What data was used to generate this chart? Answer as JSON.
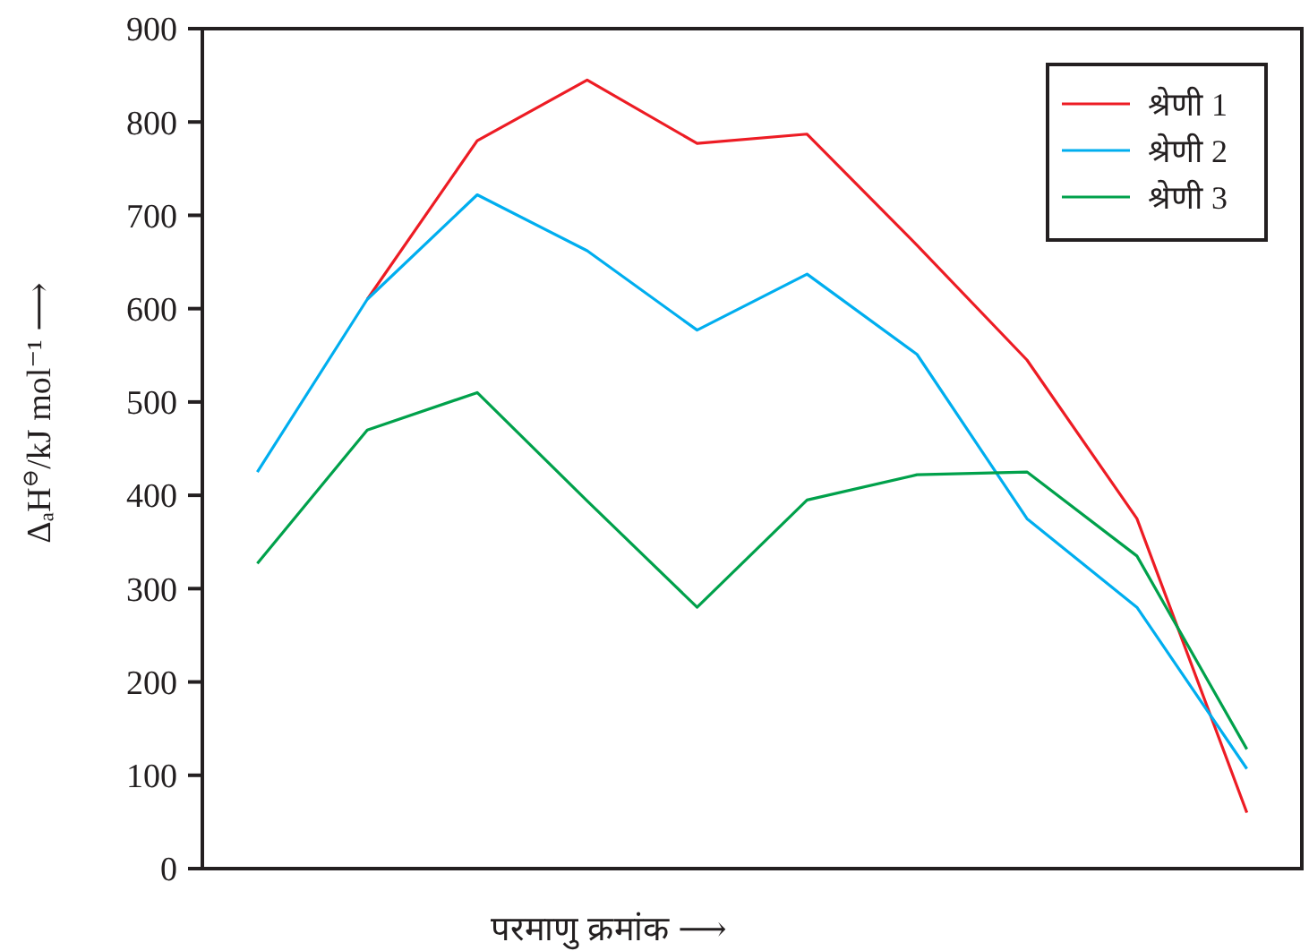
{
  "chart_data": {
    "type": "line",
    "xlabel": "परमाणु क्रमांक ⟶",
    "ylabel": "ΔₐH$^{⊖}$/kJ mol⁻¹ ⟶",
    "categories": [
      null,
      null,
      null,
      null,
      null,
      null,
      null,
      null,
      null,
      null
    ],
    "series": [
      {
        "name": "श्रेणी 1",
        "color": "#ed1c24",
        "values": [
          null,
          610,
          780,
          845,
          777,
          787,
          668,
          545,
          375,
          60
        ]
      },
      {
        "name": "श्रेणी 2",
        "color": "#00aeef",
        "values": [
          425,
          610,
          722,
          662,
          577,
          637,
          551,
          375,
          280,
          107
        ]
      },
      {
        "name": "श्रेणी 3",
        "color": "#00a14b",
        "values": [
          327,
          470,
          510,
          394,
          280,
          395,
          422,
          425,
          335,
          128
        ]
      }
    ],
    "ylim": [
      0,
      900
    ],
    "yticks": [
      0,
      100,
      200,
      300,
      400,
      500,
      600,
      700,
      800,
      900
    ],
    "grid": false,
    "legend": "top right",
    "marker": "none",
    "line_style": "solid"
  }
}
